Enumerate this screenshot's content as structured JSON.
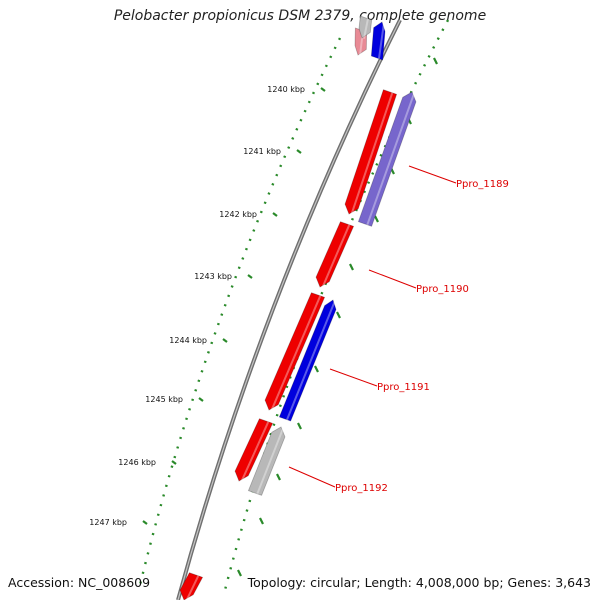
{
  "title": "Pelobacter propionicus DSM 2379, complete genome",
  "footer": {
    "accession": "Accession: NC_008609",
    "summary": "Topology: circular; Length: 4,008,000 bp; Genes: 3,643"
  },
  "colors": {
    "backbone": "#808080",
    "forward_gene": "#ee0000",
    "reverse_gene": "#0000dd",
    "reverse_gene_light": "#7766cc",
    "pseudo_gene": "#b8b8b8",
    "tick": "#2a8a2a",
    "label_line": "#dd0000"
  },
  "ticks": [
    "1240 kbp",
    "1241 kbp",
    "1242 kbp",
    "1243 kbp",
    "1244 kbp",
    "1245 kbp",
    "1246 kbp",
    "1247 kbp"
  ],
  "gene_labels": [
    "Ppro_1189",
    "Ppro_1190",
    "Ppro_1191",
    "Ppro_1192"
  ]
}
